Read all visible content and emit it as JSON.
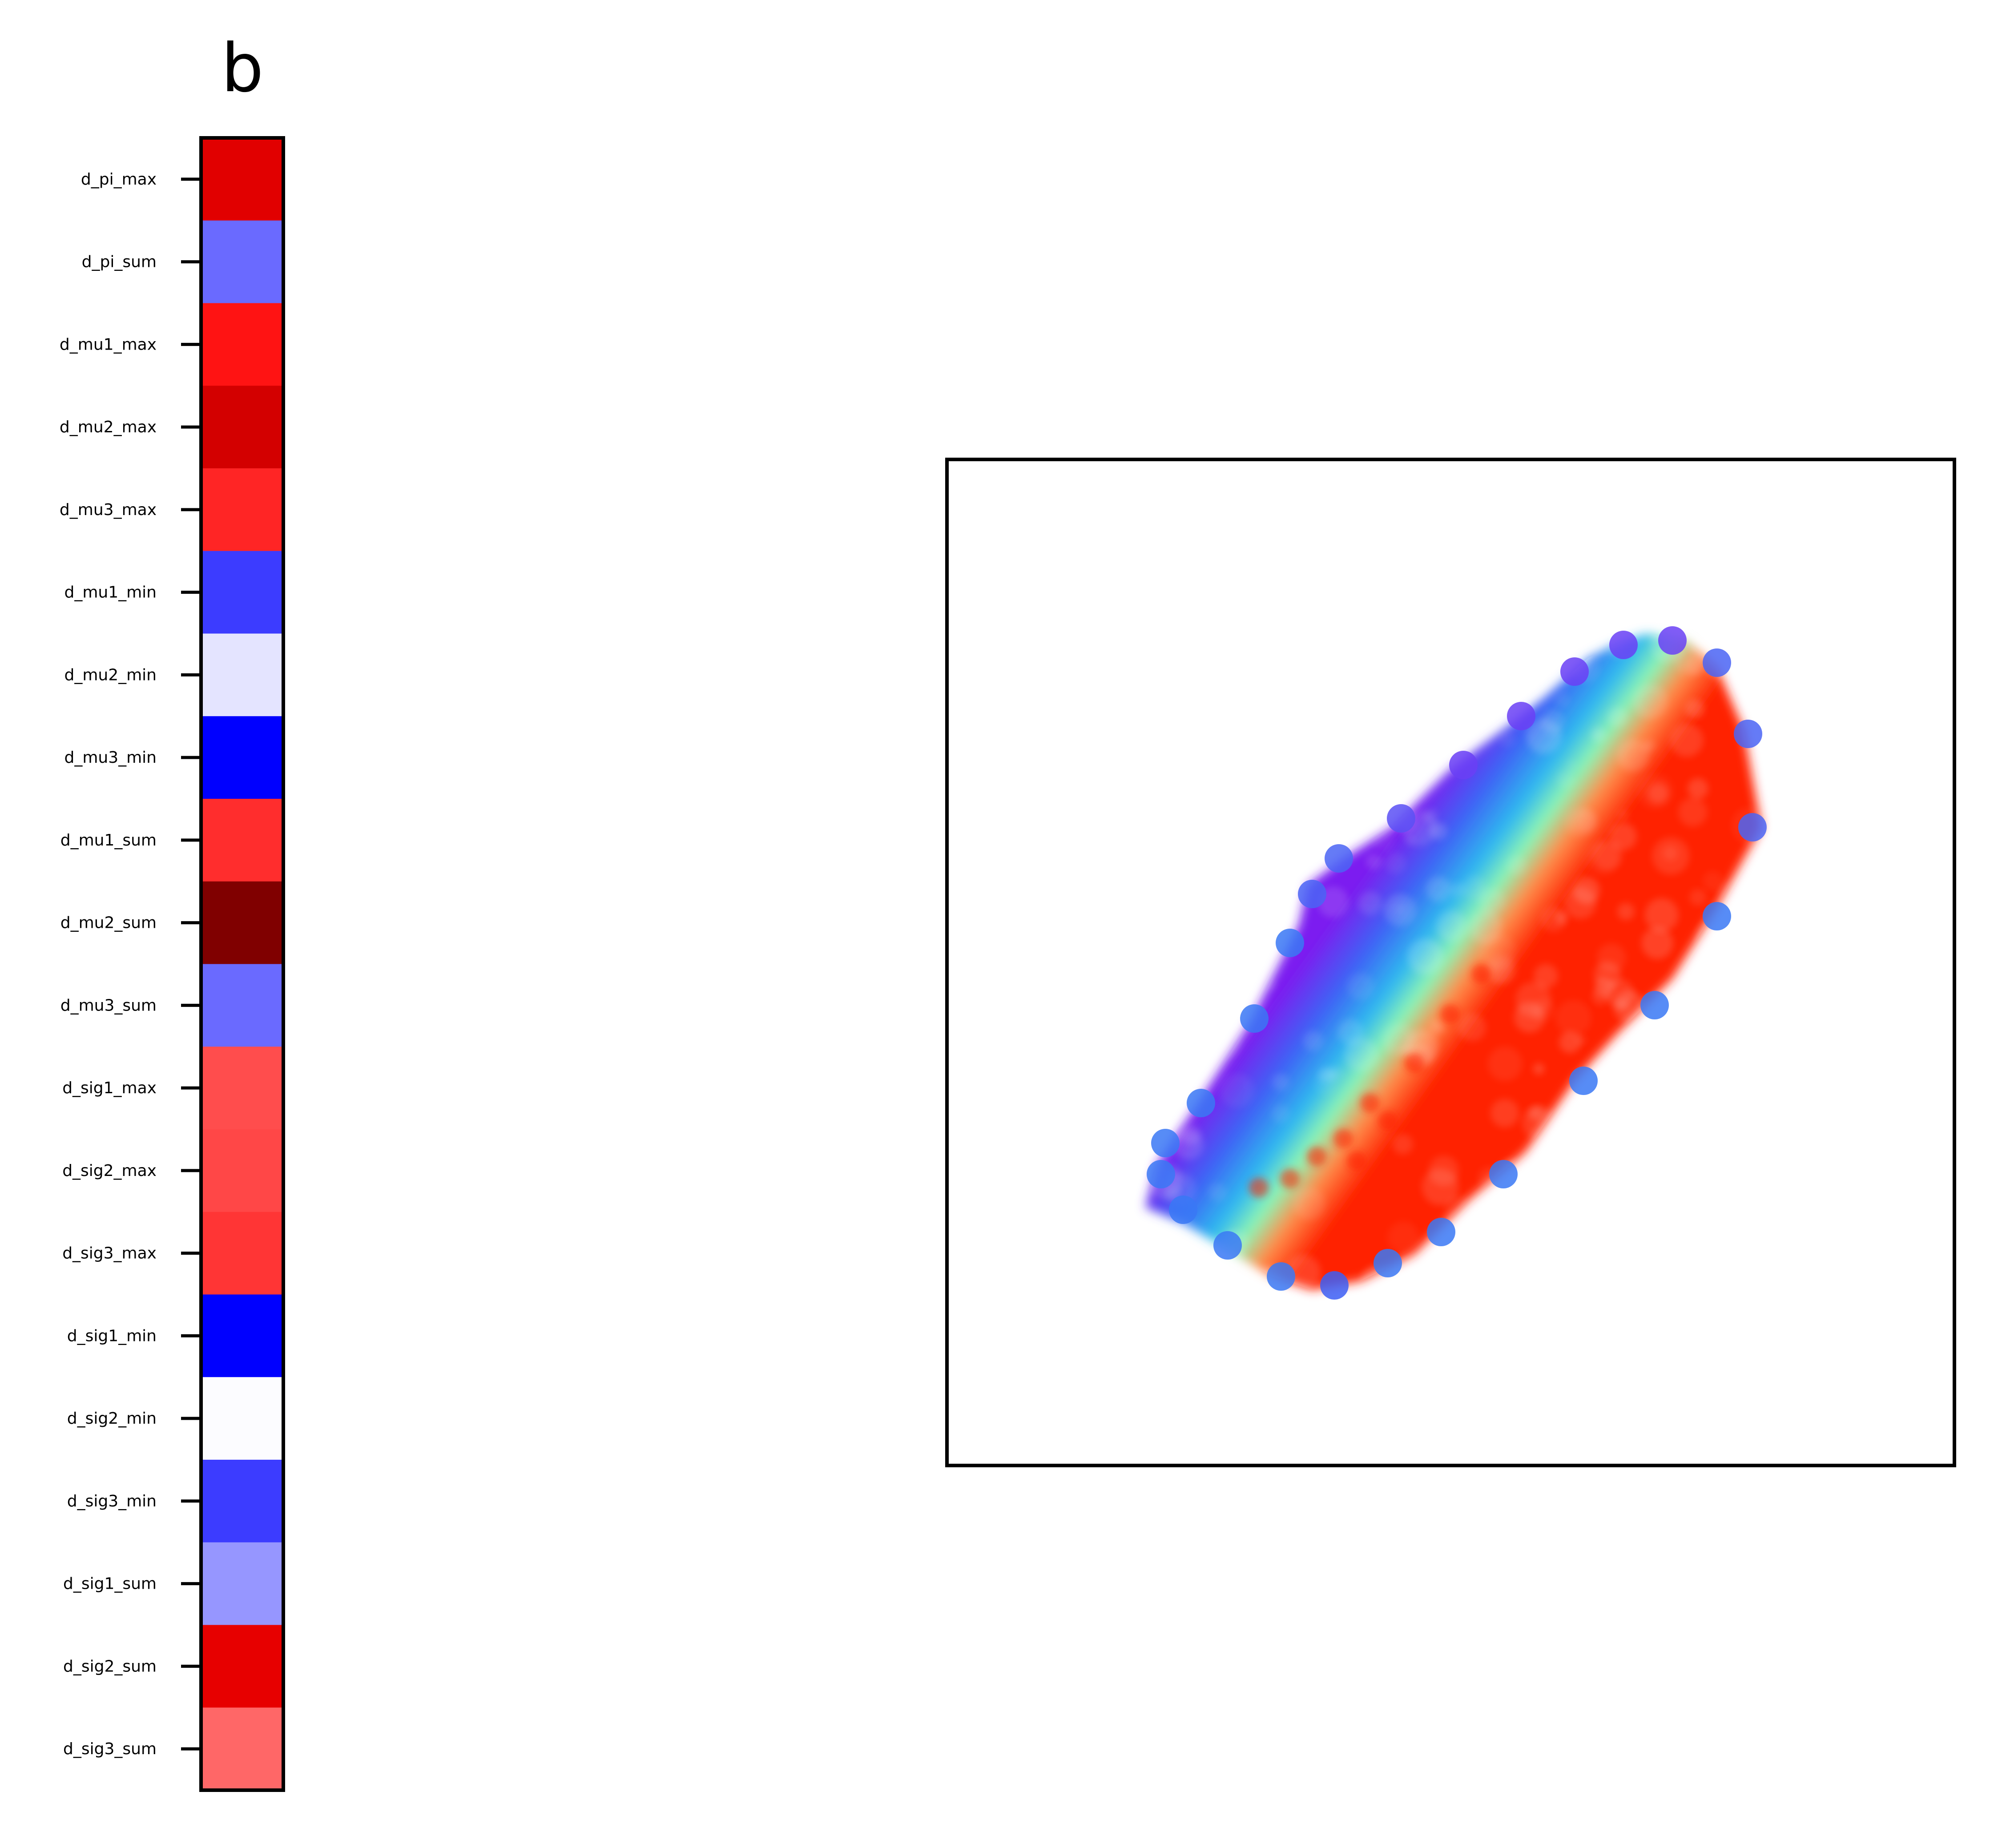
{
  "chart_data": [
    {
      "type": "heatmap",
      "panel_label": "b",
      "rows": [
        "d_pi_max",
        "d_pi_sum",
        "d_mu1_max",
        "d_mu2_max",
        "d_mu3_max",
        "d_mu1_min",
        "d_mu2_min",
        "d_mu3_min",
        "d_mu1_sum",
        "d_mu2_sum",
        "d_mu3_sum",
        "d_sig1_max",
        "d_sig2_max",
        "d_sig3_max",
        "d_sig1_min",
        "d_sig2_min",
        "d_sig3_min",
        "d_sig1_sum",
        "d_sig2_sum",
        "d_sig3_sum"
      ],
      "cell_colors": [
        "#e10000",
        "#6a6aff",
        "#ff1313",
        "#d30000",
        "#ff2525",
        "#3c3cff",
        "#e4e4ff",
        "#0000ff",
        "#ff2d2d",
        "#800000",
        "#6a6aff",
        "#ff4d4d",
        "#ff4747",
        "#ff3535",
        "#0000ff",
        "#fcfcff",
        "#3c3cff",
        "#9696ff",
        "#e70000",
        "#ff6767"
      ],
      "colormap": "bwr",
      "grid": false,
      "xticks": false
    },
    {
      "type": "heatmap",
      "colormap": "rainbow",
      "xticks": false,
      "yticks": false,
      "grid": false
    }
  ]
}
